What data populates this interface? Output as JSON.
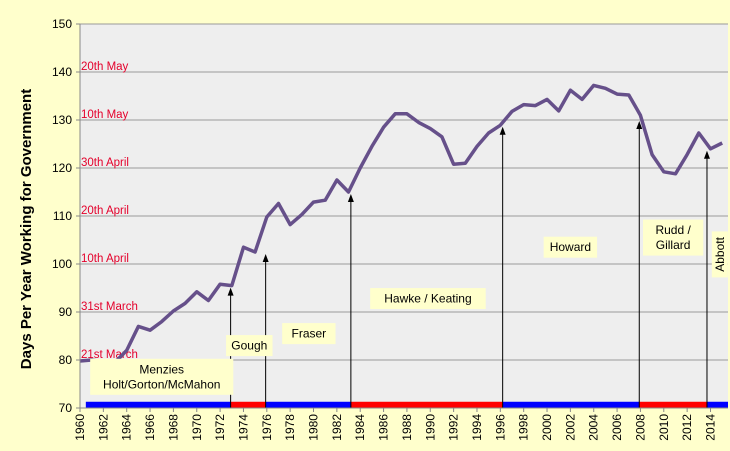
{
  "colors": {
    "background": "#FFFFCC",
    "plot_background": "#EEEEEE",
    "series_line": "#66508A",
    "arrow": "#000000",
    "date_label": "#E4002B",
    "coalition_bar": "#0000FF",
    "labor_bar": "#FF0000",
    "pm_label_fill": "#FFFFCC"
  },
  "chart_data": {
    "type": "line",
    "ylabel": "Days Per Year Working for Government",
    "xlabel": "",
    "title": "",
    "ylim": [
      70,
      150
    ],
    "xlim": [
      1960,
      2015
    ],
    "grid": "horizontal",
    "y_ticks": [
      70,
      80,
      90,
      100,
      110,
      120,
      130,
      140,
      150
    ],
    "x_ticks": [
      "1960",
      "1962",
      "1964",
      "1966",
      "1968",
      "1970",
      "1972",
      "1974",
      "1976",
      "1978",
      "1980",
      "1982",
      "1984",
      "1986",
      "1988",
      "1990",
      "1992",
      "1994",
      "1996",
      "1998",
      "2000",
      "2002",
      "2004",
      "2006",
      "2008",
      "2010",
      "2012",
      "2014"
    ],
    "series": [
      {
        "x": [
          1960,
          1961,
          1962,
          1963,
          1964,
          1965,
          1966,
          1967,
          1968,
          1969,
          1970,
          1971,
          1972,
          1973,
          1974,
          1975,
          1976,
          1977,
          1978,
          1979,
          1980,
          1981,
          1982,
          1983,
          1984,
          1985,
          1986,
          1987,
          1988,
          1989,
          1990,
          1991,
          1992,
          1993,
          1994,
          1995,
          1996,
          1997,
          1998,
          1999,
          2000,
          2001,
          2002,
          2003,
          2004,
          2005,
          2006,
          2007,
          2008,
          2009,
          2010,
          2011,
          2012,
          2013,
          2014,
          2015
        ],
        "values": [
          79.8,
          80.0,
          79.6,
          79.5,
          82.0,
          87.0,
          86.2,
          88.0,
          90.2,
          91.8,
          94.2,
          92.4,
          95.8,
          95.5,
          103.5,
          102.5,
          109.8,
          112.6,
          108.2,
          110.3,
          112.9,
          113.3,
          117.5,
          115.0,
          120.0,
          124.5,
          128.5,
          131.3,
          131.3,
          129.5,
          128.2,
          126.5,
          120.8,
          121.0,
          124.5,
          127.3,
          128.9,
          131.8,
          133.2,
          133.0,
          134.3,
          131.9,
          136.2,
          134.3,
          137.2,
          136.6,
          135.4,
          135.2,
          131.0,
          122.8,
          119.2,
          118.8,
          122.8,
          127.3,
          124.0,
          125.2
        ]
      }
    ],
    "date_markers": [
      {
        "label": "21st March",
        "value": 80
      },
      {
        "label": "31st March",
        "value": 90
      },
      {
        "label": "10th April",
        "value": 100
      },
      {
        "label": "20th April",
        "value": 110
      },
      {
        "label": "30th April",
        "value": 120
      },
      {
        "label": "10th May",
        "value": 130
      },
      {
        "label": "20th May",
        "value": 140
      }
    ],
    "government_periods": [
      {
        "party": "coalition",
        "start": 1960,
        "end": 1972.9
      },
      {
        "party": "labor",
        "start": 1972.9,
        "end": 1975.9
      },
      {
        "party": "coalition",
        "start": 1975.9,
        "end": 1983.2
      },
      {
        "party": "labor",
        "start": 1983.2,
        "end": 1996.2
      },
      {
        "party": "coalition",
        "start": 1996.2,
        "end": 2007.9
      },
      {
        "party": "labor",
        "start": 2007.9,
        "end": 2013.7
      },
      {
        "party": "coalition",
        "start": 2013.7,
        "end": 2015.5
      }
    ],
    "arrows": [
      {
        "x": 1972.9,
        "to": 95.5
      },
      {
        "x": 1975.9,
        "to": 102.5
      },
      {
        "x": 1983.2,
        "to": 115.0
      },
      {
        "x": 1996.2,
        "to": 129.0
      },
      {
        "x": 2007.9,
        "to": 130.2
      },
      {
        "x": 2013.7,
        "to": 124.0
      }
    ],
    "pm_labels": [
      {
        "lines": [
          "Menzies",
          "Holt/Gorton/McMahon"
        ],
        "x": 1967.0,
        "y": 76.5
      },
      {
        "lines": [
          "Gough"
        ],
        "x": 1974.5,
        "y": 83.0
      },
      {
        "lines": [
          "Fraser"
        ],
        "x": 1979.6,
        "y": 85.5
      },
      {
        "lines": [
          "Hawke / Keating"
        ],
        "x": 1989.8,
        "y": 92.8
      },
      {
        "lines": [
          "Howard"
        ],
        "x": 2002.0,
        "y": 103.5
      },
      {
        "lines": [
          "Rudd /",
          "Gillard"
        ],
        "x": 2010.8,
        "y": 105.5
      },
      {
        "lines": [
          "Abbott"
        ],
        "x": 2014.8,
        "y": 102.0,
        "vertical": true
      }
    ]
  }
}
